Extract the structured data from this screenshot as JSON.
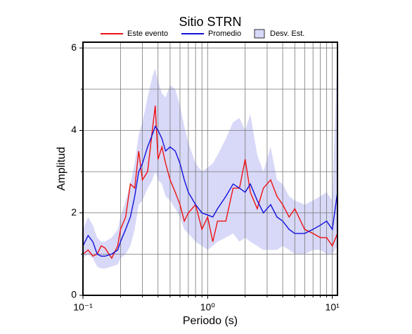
{
  "chart_data": {
    "type": "line",
    "title": "Sitio STRN",
    "x_label": "Periodo (s)",
    "y_label": "Amplitud",
    "x_scale": "log",
    "grid": true,
    "xlim": [
      0.1,
      11
    ],
    "ylim": [
      0,
      6.14
    ],
    "xticks": [
      {
        "value": 0.1,
        "label": "10⁻¹"
      },
      {
        "value": 1,
        "label": "10⁰"
      },
      {
        "value": 10,
        "label": "10¹"
      }
    ],
    "xminor": [
      0.2,
      0.3,
      0.4,
      0.5,
      0.6,
      0.7,
      0.8,
      0.9,
      2,
      3,
      4,
      5,
      6,
      7,
      8,
      9
    ],
    "yticks": [
      0,
      2,
      4,
      6
    ],
    "yminor": [
      1,
      3,
      5
    ],
    "x": [
      0.1,
      0.11,
      0.12,
      0.13,
      0.14,
      0.15,
      0.17,
      0.19,
      0.2,
      0.22,
      0.24,
      0.26,
      0.28,
      0.3,
      0.33,
      0.36,
      0.38,
      0.4,
      0.43,
      0.46,
      0.5,
      0.55,
      0.6,
      0.65,
      0.7,
      0.8,
      0.9,
      1.0,
      1.1,
      1.2,
      1.4,
      1.6,
      1.8,
      2.0,
      2.2,
      2.5,
      2.8,
      3.2,
      3.6,
      4,
      4.5,
      5,
      6,
      7,
      8,
      9,
      10,
      11
    ],
    "series": [
      {
        "name": "Este evento",
        "color": "#ee1111",
        "values": [
          1.0,
          1.1,
          0.95,
          1.0,
          1.2,
          1.15,
          0.9,
          1.2,
          1.6,
          1.9,
          2.7,
          2.6,
          3.5,
          2.8,
          3.0,
          4.0,
          4.6,
          3.3,
          3.6,
          3.2,
          2.8,
          2.5,
          2.2,
          1.8,
          2.0,
          2.2,
          1.6,
          1.9,
          1.3,
          1.8,
          1.8,
          2.6,
          2.6,
          3.3,
          2.5,
          2.1,
          2.6,
          2.8,
          2.4,
          2.2,
          1.9,
          2.1,
          1.6,
          1.5,
          1.4,
          1.4,
          1.2,
          1.5
        ]
      },
      {
        "name": "Promedio",
        "color": "#1111dd",
        "values": [
          1.2,
          1.45,
          1.3,
          1.0,
          0.95,
          0.95,
          1.0,
          1.1,
          1.3,
          1.6,
          1.9,
          2.4,
          3.0,
          3.2,
          3.6,
          3.9,
          4.1,
          4.0,
          3.8,
          3.5,
          3.6,
          3.5,
          3.2,
          2.8,
          2.5,
          2.2,
          2.0,
          1.95,
          1.9,
          2.1,
          2.4,
          2.7,
          2.6,
          2.5,
          2.7,
          2.3,
          2.0,
          2.2,
          1.9,
          1.8,
          1.6,
          1.5,
          1.5,
          1.6,
          1.7,
          1.8,
          1.6,
          2.5
        ]
      },
      {
        "name": "Desv. Est.",
        "color": "#d8d8f8",
        "upper": [
          1.6,
          1.9,
          1.7,
          1.4,
          1.3,
          1.3,
          1.4,
          1.6,
          1.9,
          2.3,
          2.7,
          3.2,
          3.9,
          4.2,
          4.8,
          5.3,
          5.5,
          5.2,
          4.9,
          4.8,
          5.1,
          5.0,
          4.6,
          4.1,
          3.7,
          3.2,
          3.0,
          3.1,
          3.2,
          3.4,
          3.8,
          4.2,
          4.3,
          4.0,
          4.4,
          3.4,
          3.0,
          3.6,
          2.8,
          2.7,
          2.4,
          2.3,
          2.2,
          2.3,
          2.4,
          2.5,
          2.3,
          6.0
        ],
        "lower": [
          0.9,
          1.0,
          0.9,
          0.7,
          0.65,
          0.65,
          0.7,
          0.75,
          0.9,
          1.0,
          1.2,
          1.6,
          2.2,
          2.3,
          2.6,
          2.8,
          3.0,
          2.8,
          2.7,
          2.4,
          2.3,
          2.1,
          1.9,
          1.6,
          1.5,
          1.3,
          1.2,
          1.1,
          1.2,
          1.3,
          1.4,
          1.5,
          1.3,
          1.4,
          1.3,
          1.2,
          1.1,
          1.1,
          1.1,
          1.2,
          1.1,
          1.0,
          1.0,
          1.1,
          1.1,
          1.0,
          1.0,
          1.2
        ]
      }
    ]
  }
}
